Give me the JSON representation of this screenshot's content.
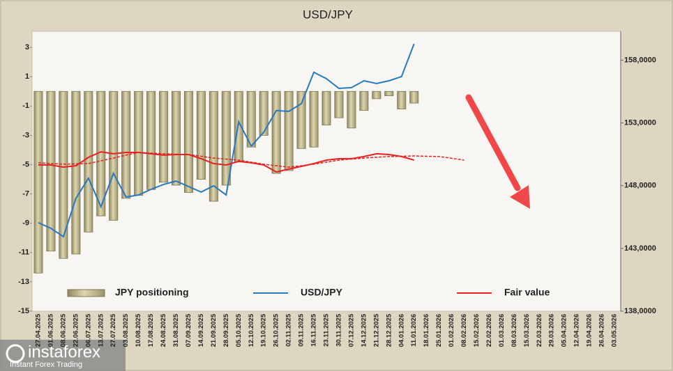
{
  "chart_data": {
    "type": "bar_line",
    "title": "USD/JPY",
    "watermark": {
      "brand": "instaforex",
      "tagline": "Instant Forex Trading"
    },
    "categories": [
      "27.04.2025",
      "01.06.2025",
      "08.06.2025",
      "22.06.2025",
      "06.07.2025",
      "13.07.2025",
      "27.07.2025",
      "03.08.2025",
      "10.08.2025",
      "17.08.2025",
      "24.08.2025",
      "31.08.2025",
      "07.09.2025",
      "14.09.2025",
      "21.09.2025",
      "28.09.2025",
      "05.10.2025",
      "12.10.2025",
      "19.10.2025",
      "26.10.2025",
      "02.11.2025",
      "09.11.2025",
      "16.11.2025",
      "23.11.2025",
      "30.11.2025",
      "07.12.2025",
      "14.12.2025",
      "21.12.2025",
      "28.12.2025",
      "04.01.2026",
      "11.01.2026",
      "18.01.2026",
      "25.01.2026",
      "01.02.2026",
      "08.02.2026",
      "15.02.2026",
      "22.02.2026",
      "01.03.2026",
      "08.03.2026",
      "15.03.2026",
      "22.03.2026",
      "29.03.2026",
      "05.04.2026",
      "12.04.2026",
      "19.04.2026",
      "26.04.2026",
      "03.05.2026"
    ],
    "series": [
      {
        "name": "JPY positioning",
        "kind": "bar",
        "color": "#bdb58c",
        "values": [
          -12.4,
          -10.9,
          -11.4,
          -11.1,
          -9.6,
          -8.5,
          -8.8,
          -7.3,
          -7.1,
          -6.7,
          -6.2,
          -6.4,
          -6.9,
          -6.0,
          -7.5,
          -6.4,
          -4.8,
          -3.8,
          -3.0,
          -5.6,
          -5.4,
          -3.9,
          -3.8,
          -2.3,
          -1.8,
          -2.5,
          -1.3,
          -0.5,
          -0.3,
          -1.2,
          -0.8,
          null,
          null,
          null,
          null,
          null,
          null,
          null,
          null,
          null,
          null,
          null,
          null,
          null,
          null,
          null,
          null
        ]
      },
      {
        "name": "USD/JPY",
        "kind": "line",
        "axis": "y2",
        "color": "#2878c0",
        "values": [
          145.05,
          144.6,
          143.94,
          146.99,
          148.6,
          146.32,
          148.98,
          147.1,
          147.26,
          147.71,
          148.1,
          148.37,
          147.93,
          147.49,
          147.99,
          147.26,
          153.09,
          151.15,
          152.26,
          153.98,
          153.92,
          154.53,
          157.03,
          156.53,
          155.75,
          155.81,
          156.36,
          156.14,
          156.36,
          156.69,
          159.3,
          null,
          null,
          null,
          null,
          null,
          null,
          null,
          null,
          null,
          null,
          null,
          null,
          null,
          null,
          null,
          null
        ]
      },
      {
        "name": "Fair value",
        "kind": "line",
        "axis": "y2",
        "color": "#e8201f",
        "values": [
          149.65,
          149.65,
          149.48,
          149.59,
          150.26,
          150.7,
          150.54,
          150.65,
          150.65,
          150.54,
          150.43,
          150.48,
          150.48,
          150.15,
          149.76,
          149.65,
          149.93,
          149.82,
          149.65,
          149.09,
          149.32,
          149.54,
          149.76,
          150.04,
          150.15,
          150.15,
          150.32,
          150.54,
          150.48,
          150.32,
          150.04,
          null,
          null,
          null,
          null,
          null,
          null,
          null,
          null,
          null,
          null,
          null,
          null,
          null,
          null,
          null,
          null
        ]
      },
      {
        "kind": "line",
        "axis": "y2",
        "color": "#e8201f",
        "dashed": true,
        "values": [
          149.82,
          149.76,
          149.71,
          149.73,
          149.76,
          149.98,
          150.2,
          150.43,
          150.65,
          150.59,
          150.54,
          150.51,
          150.48,
          150.34,
          150.2,
          150.12,
          150.04,
          149.87,
          149.71,
          149.59,
          149.48,
          149.59,
          149.71,
          149.87,
          150.04,
          150.12,
          150.2,
          150.26,
          150.32,
          150.34,
          150.37,
          150.34,
          150.32,
          150.18,
          150.04,
          null,
          null,
          null,
          null,
          null,
          null,
          null,
          null,
          null,
          null,
          null,
          null
        ]
      }
    ],
    "ylim": [
      -15,
      4.1
    ],
    "yticks": [
      3,
      1,
      -1,
      -3,
      -5,
      -7,
      -9,
      -11,
      -13,
      -15
    ],
    "y2lim": [
      138,
      160.3
    ],
    "y2ticks": [
      {
        "value": 158,
        "label": "158,0000"
      },
      {
        "value": 153,
        "label": "153,0000"
      },
      {
        "value": 148,
        "label": "148,0000"
      },
      {
        "value": 143,
        "label": "143,0000"
      },
      {
        "value": 138,
        "label": "138,0000"
      }
    ],
    "grid": false,
    "legend": "bottom"
  }
}
